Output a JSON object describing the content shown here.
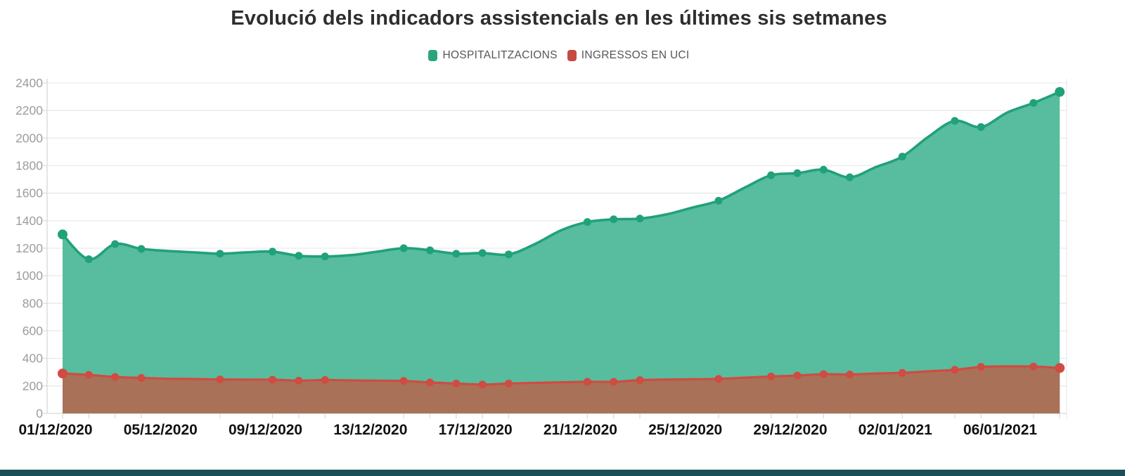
{
  "title": "Evolució dels indicadors assistencials en les últimes sis setmanes",
  "legend": {
    "items": [
      {
        "label": "HOSPITALITZACIONS",
        "color": "#2aa57c"
      },
      {
        "label": "INGRESSOS EN UCI",
        "color": "#c8493f"
      }
    ]
  },
  "chart_data": {
    "type": "area",
    "title": "Evolució dels indicadors assistencials en les últimes sis setmanes",
    "x": [
      "01/12/2020",
      "02/12/2020",
      "03/12/2020",
      "04/12/2020",
      "05/12/2020",
      "06/12/2020",
      "07/12/2020",
      "08/12/2020",
      "09/12/2020",
      "10/12/2020",
      "11/12/2020",
      "12/12/2020",
      "13/12/2020",
      "14/12/2020",
      "15/12/2020",
      "16/12/2020",
      "17/12/2020",
      "18/12/2020",
      "19/12/2020",
      "20/12/2020",
      "21/12/2020",
      "22/12/2020",
      "23/12/2020",
      "24/12/2020",
      "25/12/2020",
      "26/12/2020",
      "27/12/2020",
      "28/12/2020",
      "29/12/2020",
      "30/12/2020",
      "31/12/2020",
      "01/01/2021",
      "02/01/2021",
      "03/01/2021",
      "04/01/2021",
      "05/01/2021",
      "06/01/2021",
      "07/01/2021",
      "08/01/2021"
    ],
    "x_tick_label_indices": [
      0,
      4,
      8,
      12,
      16,
      20,
      24,
      28,
      32,
      36
    ],
    "marker_indices": [
      0,
      1,
      2,
      3,
      6,
      8,
      9,
      10,
      13,
      14,
      15,
      16,
      17,
      20,
      21,
      22,
      25,
      27,
      28,
      29,
      30,
      32,
      34,
      35,
      37,
      38
    ],
    "ylim": [
      0,
      2400
    ],
    "y_tick_step": 200,
    "grid": "horizontal",
    "legend_position": "top",
    "series": [
      {
        "name": "HOSPITALITZACIONS",
        "line_color": "#21a179",
        "fill_color": "#57bd9e",
        "values": [
          1300,
          1120,
          1230,
          1195,
          1180,
          1170,
          1160,
          1170,
          1175,
          1145,
          1140,
          1150,
          1175,
          1200,
          1185,
          1160,
          1165,
          1155,
          1230,
          1330,
          1390,
          1410,
          1415,
          1445,
          1495,
          1545,
          1640,
          1730,
          1745,
          1770,
          1715,
          1790,
          1865,
          2010,
          2125,
          2080,
          2185,
          2255,
          2335
        ]
      },
      {
        "name": "INGRESSOS EN UCI",
        "line_color": "#d04b41",
        "fill_color": "#a97158",
        "values": [
          290,
          280,
          265,
          258,
          252,
          250,
          247,
          246,
          245,
          238,
          243,
          240,
          238,
          236,
          225,
          217,
          210,
          217,
          222,
          226,
          230,
          230,
          242,
          246,
          248,
          251,
          260,
          268,
          275,
          285,
          283,
          290,
          295,
          306,
          317,
          338,
          342,
          341,
          330
        ]
      }
    ]
  }
}
